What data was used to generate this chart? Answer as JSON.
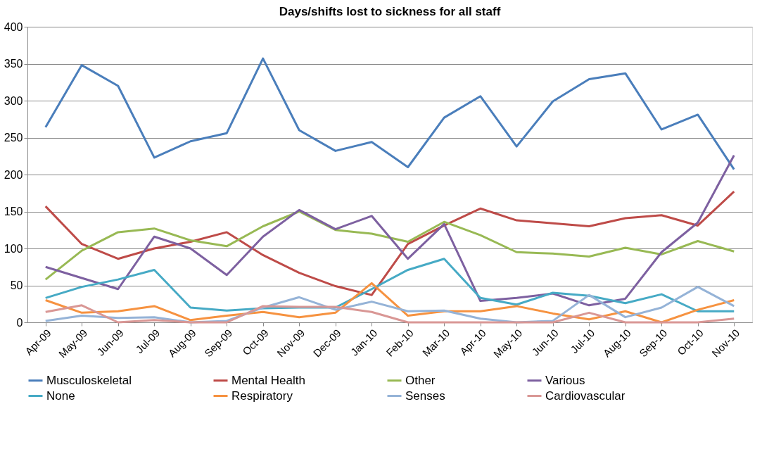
{
  "chart_data": {
    "type": "line",
    "title": "Days/shifts lost to sickness for all staff",
    "categories": [
      "Apr-09",
      "May-09",
      "Jun-09",
      "Jul-09",
      "Aug-09",
      "Sep-09",
      "Oct-09",
      "Nov-09",
      "Dec-09",
      "Jan-10",
      "Feb-10",
      "Mar-10",
      "Apr-10",
      "May-10",
      "Jun-10",
      "Jul-10",
      "Aug-10",
      "Sep-10",
      "Oct-10",
      "Nov-10"
    ],
    "series": [
      {
        "name": "Musculoskeletal",
        "color": "#4a7ebb",
        "values": [
          264,
          348,
          320,
          223,
          245,
          256,
          357,
          260,
          232,
          244,
          210,
          277,
          306,
          238,
          299,
          329,
          337,
          261,
          281,
          207
        ]
      },
      {
        "name": "Mental Health",
        "color": "#be4b48",
        "values": [
          157,
          106,
          86,
          100,
          109,
          122,
          91,
          67,
          49,
          37,
          106,
          131,
          154,
          138,
          134,
          130,
          141,
          145,
          131,
          177
        ]
      },
      {
        "name": "Other",
        "color": "#98b954",
        "values": [
          58,
          97,
          122,
          127,
          111,
          103,
          130,
          150,
          125,
          120,
          109,
          136,
          118,
          95,
          93,
          89,
          101,
          92,
          110,
          96
        ]
      },
      {
        "name": "Various",
        "color": "#7d60a0",
        "values": [
          75,
          60,
          45,
          116,
          100,
          64,
          116,
          152,
          126,
          144,
          86,
          133,
          29,
          33,
          39,
          23,
          32,
          95,
          135,
          226
        ]
      },
      {
        "name": "None",
        "color": "#46aac5",
        "values": [
          33,
          48,
          58,
          71,
          20,
          16,
          19,
          20,
          20,
          45,
          71,
          86,
          33,
          24,
          40,
          36,
          26,
          38,
          15,
          15
        ]
      },
      {
        "name": "Respiratory",
        "color": "#f69240",
        "values": [
          30,
          13,
          15,
          22,
          3,
          9,
          14,
          7,
          13,
          53,
          9,
          15,
          15,
          22,
          12,
          4,
          15,
          0,
          17,
          30
        ]
      },
      {
        "name": "Senses",
        "color": "#95b3d7",
        "values": [
          2,
          9,
          6,
          7,
          0,
          2,
          20,
          34,
          17,
          28,
          15,
          16,
          5,
          0,
          2,
          37,
          7,
          20,
          48,
          22
        ]
      },
      {
        "name": "Cardiovascular",
        "color": "#d99795",
        "values": [
          14,
          23,
          0,
          3,
          0,
          0,
          22,
          21,
          21,
          14,
          0,
          0,
          0,
          0,
          0,
          13,
          0,
          0,
          0,
          5
        ]
      }
    ],
    "ylim": [
      0,
      400
    ],
    "yticks": [
      0,
      50,
      100,
      150,
      200,
      250,
      300,
      350,
      400
    ],
    "grid": "y",
    "legend": "bottom",
    "marker": "none",
    "line_style": "solid"
  }
}
